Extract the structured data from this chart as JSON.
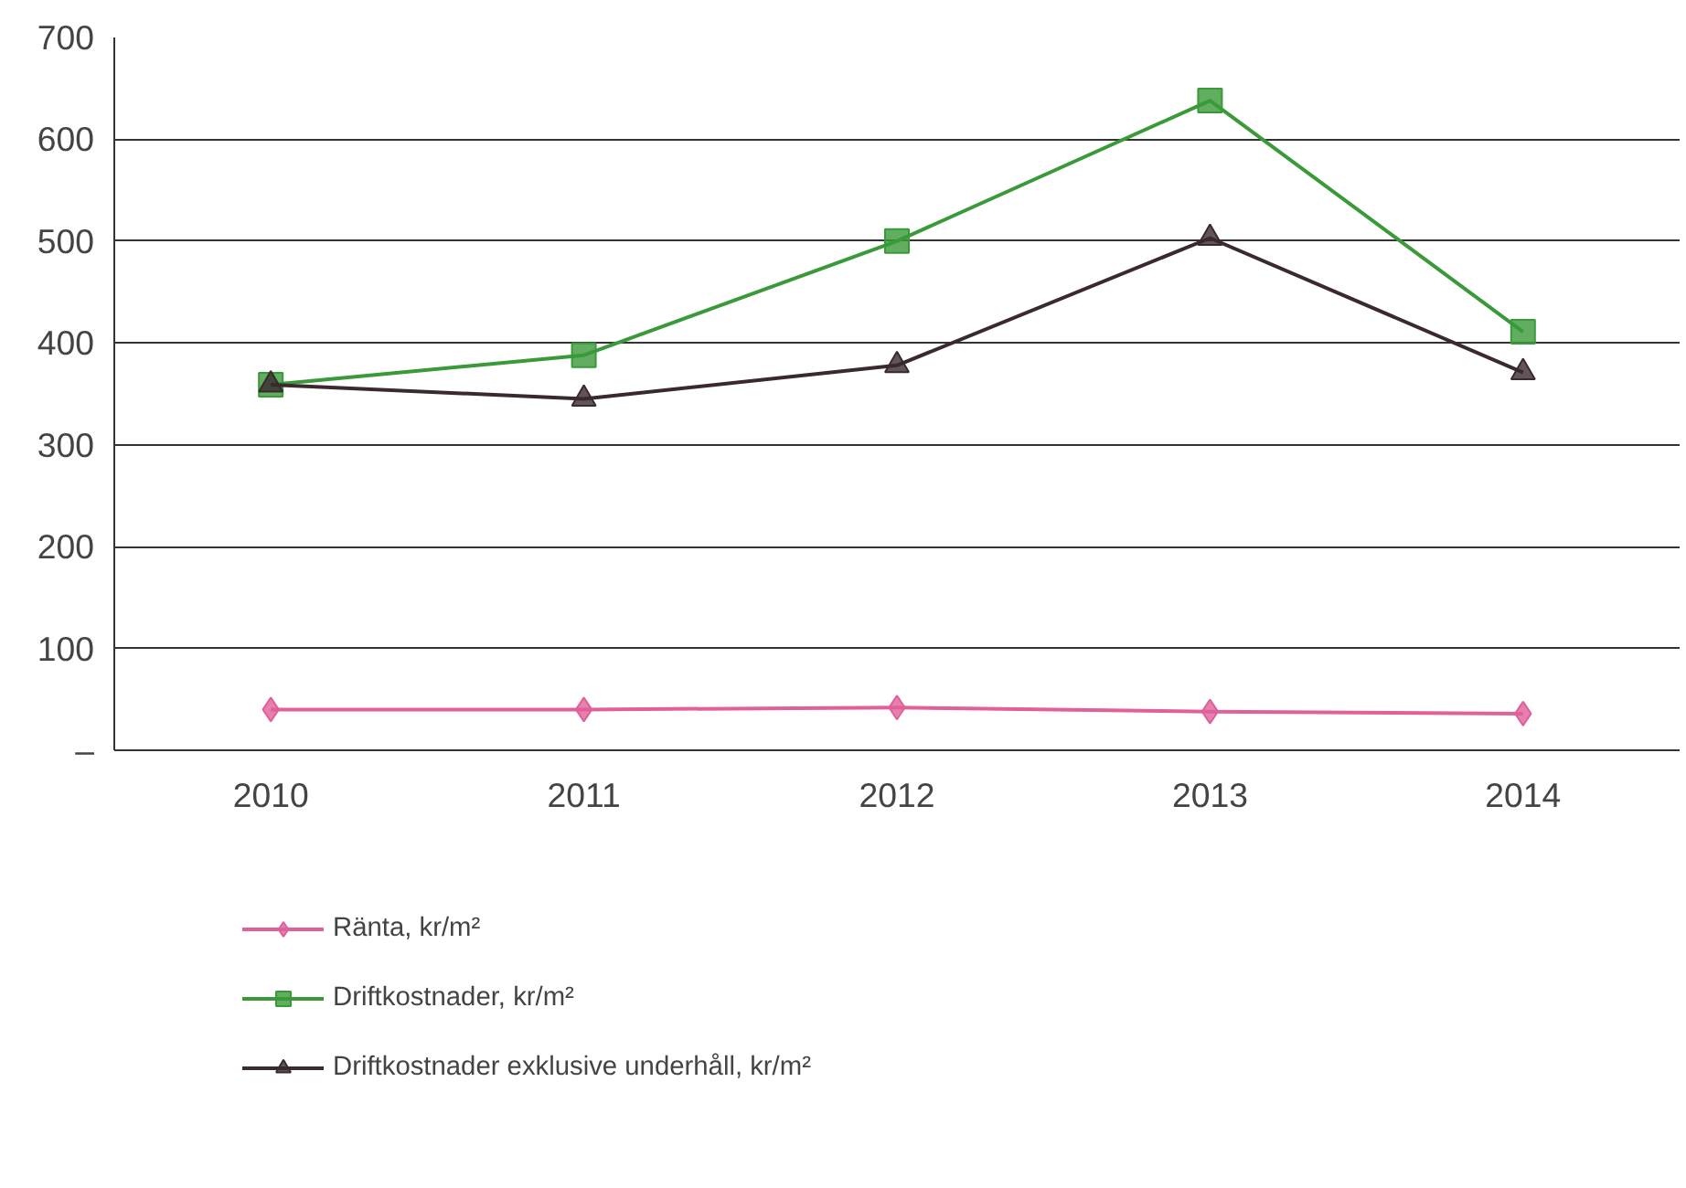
{
  "chart_data": {
    "type": "line",
    "categories": [
      "2010",
      "2011",
      "2012",
      "2013",
      "2014"
    ],
    "series": [
      {
        "name": "Ränta, kr/m²",
        "color": "#e0609a",
        "marker": "diamond",
        "values": [
          40,
          40,
          42,
          38,
          36
        ]
      },
      {
        "name": "Driftkostnader, kr/m²",
        "color": "#3a9a3a",
        "marker": "square",
        "values": [
          359,
          388,
          500,
          638,
          411
        ]
      },
      {
        "name": "Driftkostnader exklusive underhåll, kr/m²",
        "color": "#3a2a30",
        "marker": "triangle",
        "values": [
          359,
          345,
          378,
          503,
          371
        ]
      }
    ],
    "ylim": [
      0,
      700
    ],
    "yticks": [
      {
        "value": 0,
        "label": "–"
      },
      100,
      200,
      300,
      400,
      500,
      600,
      700
    ],
    "grid": "y",
    "legend": "bottom"
  }
}
